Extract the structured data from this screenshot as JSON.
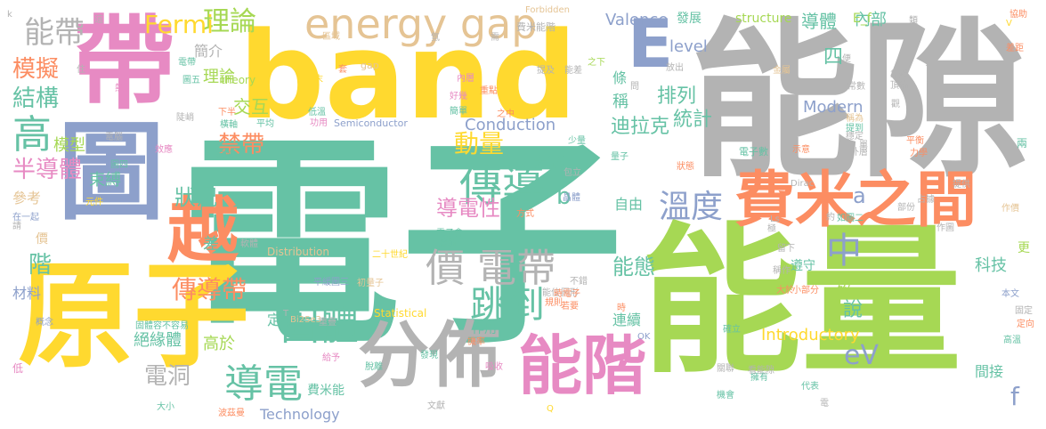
{
  "colors": {
    "green": "#66c2a5",
    "orange": "#fc8d62",
    "blue": "#8da0cb",
    "pink": "#e78ac3",
    "lime": "#a6d854",
    "yellow": "#ffd92f",
    "tan": "#e5c494",
    "gray": "#b3b3b3",
    "background": "#ffffff"
  },
  "words": [
    {
      "text": "電子",
      "color": "green"
    },
    {
      "text": "能隙",
      "color": "gray"
    },
    {
      "text": "能量",
      "color": "lime"
    },
    {
      "text": "band",
      "color": "yellow"
    },
    {
      "text": "原子",
      "color": "yellow"
    },
    {
      "text": "帶",
      "color": "pink"
    },
    {
      "text": "圖",
      "color": "blue"
    },
    {
      "text": "分佈",
      "color": "gray"
    },
    {
      "text": "費米之間",
      "color": "orange"
    },
    {
      "text": "能階",
      "color": "pink"
    },
    {
      "text": "越",
      "color": "orange"
    },
    {
      "text": "E",
      "color": "blue"
    },
    {
      "text": "energy gap",
      "color": "tan"
    },
    {
      "text": "價 電帶",
      "color": "gray"
    },
    {
      "text": "傳導",
      "color": "green"
    },
    {
      "text": "跳到",
      "color": "green"
    },
    {
      "text": "固體",
      "color": "green"
    },
    {
      "text": "導電",
      "color": "green"
    },
    {
      "text": "溫度",
      "color": "blue"
    },
    {
      "text": "中",
      "color": "blue"
    },
    {
      "text": "能帶",
      "color": "gray"
    },
    {
      "text": "模擬",
      "color": "orange"
    },
    {
      "text": "結構",
      "color": "green"
    },
    {
      "text": "高",
      "color": "green"
    },
    {
      "text": "半導體",
      "color": "pink"
    },
    {
      "text": "理論",
      "color": "lime"
    },
    {
      "text": "Fermi",
      "color": "yellow"
    },
    {
      "text": "簡介",
      "color": "gray"
    },
    {
      "text": "傳導帶",
      "color": "orange"
    },
    {
      "text": "狀況",
      "color": "green"
    },
    {
      "text": "禁帶",
      "color": "orange"
    },
    {
      "text": "交互",
      "color": "lime"
    },
    {
      "text": "導電性",
      "color": "pink"
    },
    {
      "text": "動量",
      "color": "yellow"
    },
    {
      "text": "迪拉克",
      "color": "green"
    },
    {
      "text": "統計",
      "color": "green"
    },
    {
      "text": "排列",
      "color": "green"
    },
    {
      "text": "能態",
      "color": "green"
    },
    {
      "text": "eV",
      "color": "blue"
    },
    {
      "text": "說",
      "color": "green"
    },
    {
      "text": "四",
      "color": "green"
    },
    {
      "text": "導體",
      "color": "green"
    },
    {
      "text": "內部",
      "color": "green"
    },
    {
      "text": "Conduction",
      "color": "blue"
    },
    {
      "text": "Valence",
      "color": "blue"
    },
    {
      "text": "level",
      "color": "blue"
    },
    {
      "text": "structure",
      "color": "lime"
    },
    {
      "text": "E_f",
      "color": "lime"
    },
    {
      "text": "發展",
      "color": "green"
    },
    {
      "text": "電洞",
      "color": "gray"
    },
    {
      "text": "絕緣體",
      "color": "green"
    },
    {
      "text": "模型",
      "color": "lime"
    },
    {
      "text": "束縛",
      "color": "green"
    },
    {
      "text": "階",
      "color": "green"
    },
    {
      "text": "Modern",
      "color": "blue"
    },
    {
      "text": "Introductory",
      "color": "yellow"
    },
    {
      "text": "Technology",
      "color": "blue"
    },
    {
      "text": "Semiconductor",
      "color": "blue"
    },
    {
      "text": "Statistical",
      "color": "yellow"
    },
    {
      "text": "Distribution",
      "color": "tan"
    },
    {
      "text": "Forbidden",
      "color": "tan"
    },
    {
      "text": "科技",
      "color": "green"
    },
    {
      "text": "間接",
      "color": "green"
    },
    {
      "text": "f",
      "color": "blue"
    },
    {
      "text": "a",
      "color": "blue"
    },
    {
      "text": "b",
      "color": "green"
    },
    {
      "text": "矽",
      "color": "lime"
    },
    {
      "text": "大部分",
      "color": "green"
    },
    {
      "text": "自由",
      "color": "green"
    },
    {
      "text": "連續",
      "color": "green"
    },
    {
      "text": "作用",
      "color": "green"
    },
    {
      "text": "定義",
      "color": "green"
    },
    {
      "text": "高於",
      "color": "lime"
    },
    {
      "text": "材料",
      "color": "blue"
    },
    {
      "text": "參考",
      "color": "tan"
    },
    {
      "text": "價",
      "color": "tan"
    },
    {
      "text": "差",
      "color": "green"
    },
    {
      "text": "費米能",
      "color": "green"
    },
    {
      "text": "費米能階",
      "color": "gray"
    },
    {
      "text": "稱",
      "color": "green"
    },
    {
      "text": "條",
      "color": "green"
    },
    {
      "text": "遵守",
      "color": "green"
    },
    {
      "text": "更",
      "color": "lime"
    },
    {
      "text": "理論",
      "color": "lime"
    },
    {
      "text": "gap",
      "color": "tan"
    },
    {
      "text": "theory",
      "color": "lime"
    },
    {
      "text": "電子數",
      "color": "green"
    },
    {
      "text": "Dirac",
      "color": "gray"
    },
    {
      "text": "Bi2Se3",
      "color": "tan"
    },
    {
      "text": "OK",
      "color": "blue"
    },
    {
      "text": "Ls",
      "color": "gray"
    },
    {
      "text": "Q",
      "color": "yellow"
    },
    {
      "text": "T",
      "color": "gray"
    },
    {
      "text": "V",
      "color": "yellow"
    },
    {
      "text": "k",
      "color": "gray"
    },
    {
      "text": "二十世紀",
      "color": "yellow"
    },
    {
      "text": "區域",
      "color": "tan"
    },
    {
      "text": "晶體",
      "color": "blue"
    },
    {
      "text": "金屬",
      "color": "tan"
    },
    {
      "text": "便",
      "color": "gray"
    },
    {
      "text": "量子",
      "color": "green"
    },
    {
      "text": "初量子",
      "color": "tan"
    },
    {
      "text": "平均",
      "color": "green"
    },
    {
      "text": "低溫",
      "color": "green"
    },
    {
      "text": "功用",
      "color": "pink"
    },
    {
      "text": "之中",
      "color": "orange"
    },
    {
      "text": "少量",
      "color": "green"
    },
    {
      "text": "提到",
      "color": "green"
    },
    {
      "text": "稱為",
      "color": "tan"
    },
    {
      "text": "常數",
      "color": "gray"
    },
    {
      "text": "外層",
      "color": "gray"
    },
    {
      "text": "兩",
      "color": "green"
    },
    {
      "text": "作價",
      "color": "tan"
    },
    {
      "text": "低",
      "color": "pink"
    },
    {
      "text": "在一起",
      "color": "blue"
    },
    {
      "text": "概念",
      "color": "blue"
    },
    {
      "text": "重疊",
      "color": "gray"
    },
    {
      "text": "吸收",
      "color": "pink"
    },
    {
      "text": "發現",
      "color": "green"
    },
    {
      "text": "機率",
      "color": "orange"
    },
    {
      "text": "確立",
      "color": "green"
    },
    {
      "text": "關聯",
      "color": "gray"
    },
    {
      "text": "擁有",
      "color": "green"
    },
    {
      "text": "代表",
      "color": "green"
    },
    {
      "text": "機會",
      "color": "green"
    },
    {
      "text": "波茲曼",
      "color": "orange"
    },
    {
      "text": "大小",
      "color": "green"
    },
    {
      "text": "文獻",
      "color": "gray"
    },
    {
      "text": "脫離",
      "color": "green"
    },
    {
      "text": "給予",
      "color": "pink"
    },
    {
      "text": "固體容不容易",
      "color": "green"
    },
    {
      "text": "軟體",
      "color": "gray"
    },
    {
      "text": "平緩",
      "color": "blue"
    },
    {
      "text": "圖三",
      "color": "blue"
    },
    {
      "text": "能位",
      "color": "gray"
    },
    {
      "text": "圖形",
      "color": "gray"
    },
    {
      "text": "若要",
      "color": "orange"
    },
    {
      "text": "看能隙",
      "color": "gray"
    },
    {
      "text": "高溫",
      "color": "green"
    },
    {
      "text": "定向",
      "color": "orange"
    },
    {
      "text": "固定",
      "color": "gray"
    },
    {
      "text": "本文",
      "color": "blue"
    },
    {
      "text": "小部分",
      "color": "orange"
    },
    {
      "text": "大於",
      "color": "orange"
    },
    {
      "text": "稱作",
      "color": "gray"
    },
    {
      "text": "如圖二",
      "color": "green"
    },
    {
      "text": "作圖",
      "color": "gray"
    },
    {
      "text": "約",
      "color": "gray"
    },
    {
      "text": "提供",
      "color": "gray"
    },
    {
      "text": "部份",
      "color": "gray"
    },
    {
      "text": "占據",
      "color": "gray"
    },
    {
      "text": "示意",
      "color": "orange"
    },
    {
      "text": "穩定",
      "color": "gray"
    },
    {
      "text": "單",
      "color": "gray"
    },
    {
      "text": "放出",
      "color": "gray"
    },
    {
      "text": "之下",
      "color": "lime"
    },
    {
      "text": "協助",
      "color": "orange"
    },
    {
      "text": "差距",
      "color": "orange"
    },
    {
      "text": "類",
      "color": "gray"
    },
    {
      "text": "靠近",
      "color": "gray"
    },
    {
      "text": "頂端",
      "color": "gray"
    },
    {
      "text": "電腦",
      "color": "gray"
    },
    {
      "text": "效應",
      "color": "pink"
    },
    {
      "text": "元件",
      "color": "yellow"
    },
    {
      "text": "領域",
      "color": "green"
    },
    {
      "text": "陡峭",
      "color": "gray"
    },
    {
      "text": "圖四",
      "color": "green"
    },
    {
      "text": "電帶",
      "color": "green"
    },
    {
      "text": "圖五",
      "color": "green"
    },
    {
      "text": "下半",
      "color": "orange"
    },
    {
      "text": "橫軸",
      "color": "green"
    },
    {
      "text": "好幾",
      "color": "pink"
    },
    {
      "text": "簡單",
      "color": "green"
    },
    {
      "text": "重點",
      "color": "orange"
    },
    {
      "text": "內層",
      "color": "pink"
    },
    {
      "text": "提及",
      "color": "gray"
    },
    {
      "text": "能差",
      "color": "gray"
    },
    {
      "text": "問",
      "color": "gray"
    },
    {
      "text": "住",
      "color": "gray"
    },
    {
      "text": "熱",
      "color": "pink"
    },
    {
      "text": "這",
      "color": "gray"
    },
    {
      "text": "套",
      "color": "orange"
    },
    {
      "text": "末",
      "color": "yellow"
    },
    {
      "text": "氫",
      "color": "gray"
    },
    {
      "text": "需",
      "color": "gray"
    },
    {
      "text": "請",
      "color": "gray"
    },
    {
      "text": "方式",
      "color": "orange"
    },
    {
      "text": "電子會",
      "color": "green"
    },
    {
      "text": "縱軸",
      "color": "green"
    },
    {
      "text": "規則",
      "color": "orange"
    },
    {
      "text": "不錯",
      "color": "gray"
    },
    {
      "text": "時電子",
      "color": "orange"
    },
    {
      "text": "時",
      "color": "orange"
    },
    {
      "text": "狀態",
      "color": "orange"
    },
    {
      "text": "包立",
      "color": "gray"
    },
    {
      "text": "平衡",
      "color": "orange"
    },
    {
      "text": "力學",
      "color": "orange"
    },
    {
      "text": "極",
      "color": "gray"
    },
    {
      "text": "留下",
      "color": "gray"
    },
    {
      "text": "觀",
      "color": "gray"
    },
    {
      "text": "電",
      "color": "gray"
    }
  ]
}
